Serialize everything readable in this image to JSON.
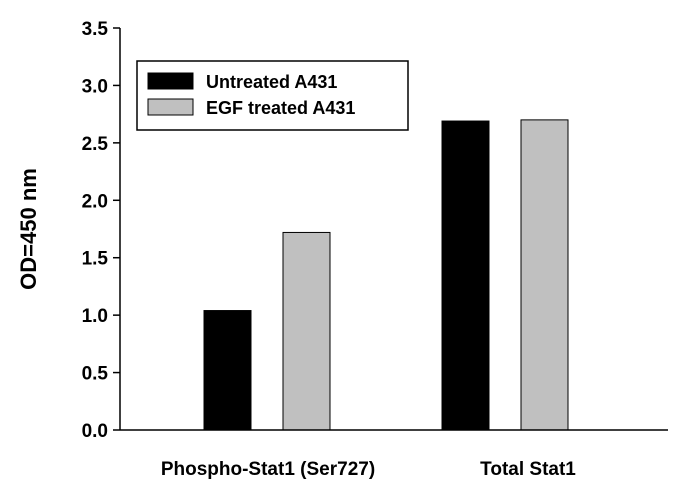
{
  "chart_data": {
    "type": "bar",
    "categories": [
      "Phospho-Stat1 (Ser727)",
      "Total Stat1"
    ],
    "series": [
      {
        "name": "Untreated A431",
        "values": [
          1.04,
          2.69
        ],
        "color": "#000000"
      },
      {
        "name": "EGF treated A431",
        "values": [
          1.72,
          2.7
        ],
        "color": "#c0c0c0"
      }
    ],
    "title": "",
    "xlabel": "",
    "ylabel": "OD=450 nm",
    "ylim": [
      0,
      3.5
    ],
    "yticks": [
      "0.0",
      "0.5",
      "1.0",
      "1.5",
      "2.0",
      "2.5",
      "3.0",
      "3.5"
    ],
    "grid": false,
    "legend_position": "top-left"
  }
}
